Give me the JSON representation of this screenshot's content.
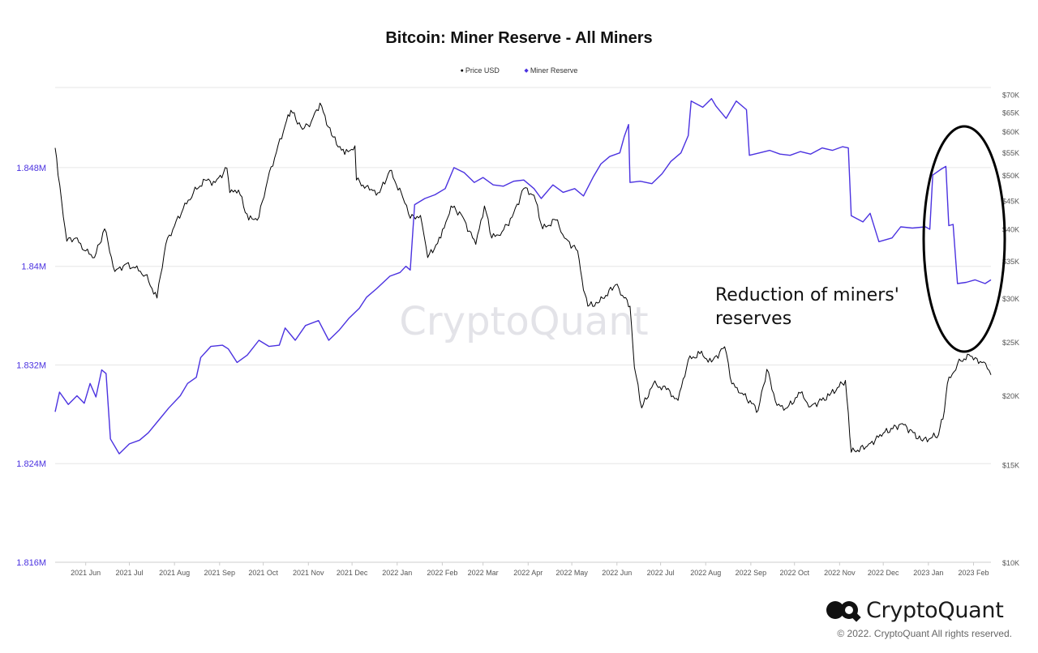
{
  "chart_data": {
    "type": "line",
    "title": "Bitcoin: Miner Reserve - All Miners",
    "legend": [
      "Price USD",
      "Miner Reserve"
    ],
    "legend_placement": "top-center",
    "grid": true,
    "x_ticks": [
      "2021 Jun",
      "2021 Jul",
      "2021 Aug",
      "2021 Sep",
      "2021 Oct",
      "2021 Nov",
      "2021 Dec",
      "2022 Jan",
      "2022 Feb",
      "2022 Mar",
      "2022 Apr",
      "2022 May",
      "2022 Jun",
      "2022 Jul",
      "2022 Aug",
      "2022 Sep",
      "2022 Oct",
      "2022 Nov",
      "2022 Dec",
      "2023 Jan",
      "2023 Feb"
    ],
    "x_range": [
      "2021-05-11",
      "2023-02-13"
    ],
    "y_left": {
      "ticks": [
        "1.848M",
        "1.84M",
        "1.832M",
        "1.824M",
        "1.816M"
      ],
      "tick_values": [
        1848000,
        1840000,
        1832000,
        1824000,
        1816000
      ],
      "range": [
        1816000,
        1854500
      ]
    },
    "y_right": {
      "scale": "log",
      "ticks": [
        "$70K",
        "$65K",
        "$60K",
        "$55K",
        "$50K",
        "$45K",
        "$40K",
        "$35K",
        "$30K",
        "$25K",
        "$20K",
        "$15K",
        "$10K"
      ],
      "tick_values": [
        70000,
        65000,
        60000,
        55000,
        50000,
        45000,
        40000,
        35000,
        30000,
        25000,
        20000,
        15000,
        10000
      ],
      "range": [
        10000,
        72000
      ]
    },
    "series": [
      {
        "name": "Price USD",
        "color": "#000000",
        "axis": "right",
        "points": [
          [
            "2021-05-11",
            56000
          ],
          [
            "2021-05-13",
            50000
          ],
          [
            "2021-05-19",
            38000
          ],
          [
            "2021-05-25",
            38500
          ],
          [
            "2021-06-01",
            36500
          ],
          [
            "2021-06-07",
            35500
          ],
          [
            "2021-06-14",
            40000
          ],
          [
            "2021-06-21",
            33500
          ],
          [
            "2021-06-28",
            34500
          ],
          [
            "2021-07-05",
            34000
          ],
          [
            "2021-07-12",
            33000
          ],
          [
            "2021-07-20",
            30000
          ],
          [
            "2021-07-26",
            37500
          ],
          [
            "2021-08-01",
            40500
          ],
          [
            "2021-08-07",
            43500
          ],
          [
            "2021-08-14",
            46500
          ],
          [
            "2021-08-22",
            49000
          ],
          [
            "2021-08-29",
            48500
          ],
          [
            "2021-09-06",
            51500
          ],
          [
            "2021-09-08",
            46500
          ],
          [
            "2021-09-14",
            47000
          ],
          [
            "2021-09-21",
            41500
          ],
          [
            "2021-09-28",
            42000
          ],
          [
            "2021-10-04",
            49000
          ],
          [
            "2021-10-10",
            55000
          ],
          [
            "2021-10-16",
            61500
          ],
          [
            "2021-10-20",
            65500
          ],
          [
            "2021-10-28",
            60500
          ],
          [
            "2021-11-03",
            62500
          ],
          [
            "2021-11-09",
            67500
          ],
          [
            "2021-11-17",
            59000
          ],
          [
            "2021-11-26",
            54500
          ],
          [
            "2021-12-03",
            56500
          ],
          [
            "2021-12-04",
            49000
          ],
          [
            "2021-12-13",
            47000
          ],
          [
            "2021-12-20",
            46500
          ],
          [
            "2021-12-27",
            51000
          ],
          [
            "2022-01-05",
            45500
          ],
          [
            "2022-01-10",
            41800
          ],
          [
            "2022-01-17",
            42300
          ],
          [
            "2022-01-22",
            35500
          ],
          [
            "2022-01-31",
            38500
          ],
          [
            "2022-02-07",
            44000
          ],
          [
            "2022-02-14",
            42500
          ],
          [
            "2022-02-24",
            37500
          ],
          [
            "2022-03-02",
            44000
          ],
          [
            "2022-03-07",
            38500
          ],
          [
            "2022-03-14",
            39500
          ],
          [
            "2022-03-21",
            42000
          ],
          [
            "2022-03-29",
            47300
          ],
          [
            "2022-04-05",
            46000
          ],
          [
            "2022-04-11",
            40000
          ],
          [
            "2022-04-20",
            41500
          ],
          [
            "2022-04-26",
            38500
          ],
          [
            "2022-05-05",
            36500
          ],
          [
            "2022-05-09",
            31000
          ],
          [
            "2022-05-12",
            29000
          ],
          [
            "2022-05-20",
            29500
          ],
          [
            "2022-05-31",
            31700
          ],
          [
            "2022-06-06",
            30000
          ],
          [
            "2022-06-10",
            29000
          ],
          [
            "2022-06-13",
            22500
          ],
          [
            "2022-06-18",
            19000
          ],
          [
            "2022-06-26",
            21000
          ],
          [
            "2022-07-05",
            20500
          ],
          [
            "2022-07-13",
            19600
          ],
          [
            "2022-07-20",
            23200
          ],
          [
            "2022-07-28",
            23800
          ],
          [
            "2022-08-05",
            23000
          ],
          [
            "2022-08-14",
            24500
          ],
          [
            "2022-08-19",
            21000
          ],
          [
            "2022-08-26",
            20200
          ],
          [
            "2022-09-06",
            18800
          ],
          [
            "2022-09-12",
            22300
          ],
          [
            "2022-09-19",
            19200
          ],
          [
            "2022-09-26",
            19000
          ],
          [
            "2022-10-05",
            20200
          ],
          [
            "2022-10-12",
            19100
          ],
          [
            "2022-10-25",
            20000
          ],
          [
            "2022-11-05",
            21300
          ],
          [
            "2022-11-09",
            15800
          ],
          [
            "2022-11-20",
            16200
          ],
          [
            "2022-12-01",
            17100
          ],
          [
            "2022-12-14",
            17800
          ],
          [
            "2022-12-28",
            16550
          ],
          [
            "2023-01-08",
            17000
          ],
          [
            "2023-01-12",
            18800
          ],
          [
            "2023-01-14",
            21000
          ],
          [
            "2023-01-21",
            22800
          ],
          [
            "2023-01-29",
            23700
          ],
          [
            "2023-02-01",
            23200
          ],
          [
            "2023-02-08",
            23000
          ],
          [
            "2023-02-13",
            21800
          ]
        ]
      },
      {
        "name": "Miner Reserve",
        "color": "#4b32e0",
        "axis": "left",
        "points": [
          [
            "2021-05-11",
            1828200
          ],
          [
            "2021-05-14",
            1829800
          ],
          [
            "2021-05-20",
            1828800
          ],
          [
            "2021-05-26",
            1829500
          ],
          [
            "2021-05-31",
            1828900
          ],
          [
            "2021-06-04",
            1830500
          ],
          [
            "2021-06-08",
            1829400
          ],
          [
            "2021-06-12",
            1831600
          ],
          [
            "2021-06-15",
            1831300
          ],
          [
            "2021-06-18",
            1826000
          ],
          [
            "2021-06-24",
            1824800
          ],
          [
            "2021-07-01",
            1825600
          ],
          [
            "2021-07-08",
            1825900
          ],
          [
            "2021-07-14",
            1826500
          ],
          [
            "2021-07-21",
            1827500
          ],
          [
            "2021-07-28",
            1828500
          ],
          [
            "2021-08-05",
            1829500
          ],
          [
            "2021-08-10",
            1830500
          ],
          [
            "2021-08-16",
            1831000
          ],
          [
            "2021-08-19",
            1832600
          ],
          [
            "2021-08-26",
            1833500
          ],
          [
            "2021-09-03",
            1833600
          ],
          [
            "2021-09-07",
            1833300
          ],
          [
            "2021-09-13",
            1832200
          ],
          [
            "2021-09-20",
            1832800
          ],
          [
            "2021-09-28",
            1834000
          ],
          [
            "2021-10-05",
            1833500
          ],
          [
            "2021-10-12",
            1833600
          ],
          [
            "2021-10-16",
            1835000
          ],
          [
            "2021-10-23",
            1834000
          ],
          [
            "2021-10-30",
            1835200
          ],
          [
            "2021-11-08",
            1835600
          ],
          [
            "2021-11-15",
            1834000
          ],
          [
            "2021-11-22",
            1834800
          ],
          [
            "2021-11-29",
            1835800
          ],
          [
            "2021-12-06",
            1836600
          ],
          [
            "2021-12-11",
            1837500
          ],
          [
            "2021-12-18",
            1838200
          ],
          [
            "2021-12-27",
            1839200
          ],
          [
            "2022-01-03",
            1839500
          ],
          [
            "2022-01-07",
            1840000
          ],
          [
            "2022-01-10",
            1839700
          ],
          [
            "2022-01-13",
            1845000
          ],
          [
            "2022-01-20",
            1845500
          ],
          [
            "2022-01-27",
            1845800
          ],
          [
            "2022-02-03",
            1846300
          ],
          [
            "2022-02-09",
            1848000
          ],
          [
            "2022-02-16",
            1847600
          ],
          [
            "2022-02-23",
            1846800
          ],
          [
            "2022-03-01",
            1847200
          ],
          [
            "2022-03-08",
            1846600
          ],
          [
            "2022-03-15",
            1846500
          ],
          [
            "2022-03-22",
            1846900
          ],
          [
            "2022-03-29",
            1847000
          ],
          [
            "2022-04-05",
            1846300
          ],
          [
            "2022-04-10",
            1845500
          ],
          [
            "2022-04-18",
            1846600
          ],
          [
            "2022-04-25",
            1846000
          ],
          [
            "2022-05-03",
            1846300
          ],
          [
            "2022-05-09",
            1845700
          ],
          [
            "2022-05-16",
            1847300
          ],
          [
            "2022-05-21",
            1848300
          ],
          [
            "2022-05-27",
            1848900
          ],
          [
            "2022-06-03",
            1849200
          ],
          [
            "2022-06-06",
            1850500
          ],
          [
            "2022-06-09",
            1851500
          ],
          [
            "2022-06-10",
            1846800
          ],
          [
            "2022-06-17",
            1846900
          ],
          [
            "2022-06-25",
            1846700
          ],
          [
            "2022-07-02",
            1847500
          ],
          [
            "2022-07-08",
            1848500
          ],
          [
            "2022-07-15",
            1849200
          ],
          [
            "2022-07-20",
            1850600
          ],
          [
            "2022-07-22",
            1853400
          ],
          [
            "2022-07-30",
            1852900
          ],
          [
            "2022-08-05",
            1853600
          ],
          [
            "2022-08-08",
            1853000
          ],
          [
            "2022-08-15",
            1852000
          ],
          [
            "2022-08-22",
            1853400
          ],
          [
            "2022-08-29",
            1852700
          ],
          [
            "2022-08-31",
            1849000
          ],
          [
            "2022-09-07",
            1849200
          ],
          [
            "2022-09-14",
            1849400
          ],
          [
            "2022-09-21",
            1849100
          ],
          [
            "2022-09-28",
            1849000
          ],
          [
            "2022-10-05",
            1849300
          ],
          [
            "2022-10-12",
            1849100
          ],
          [
            "2022-10-20",
            1849600
          ],
          [
            "2022-10-27",
            1849400
          ],
          [
            "2022-11-03",
            1849700
          ],
          [
            "2022-11-07",
            1849600
          ],
          [
            "2022-11-09",
            1844100
          ],
          [
            "2022-11-17",
            1843600
          ],
          [
            "2022-11-22",
            1844300
          ],
          [
            "2022-11-28",
            1842000
          ],
          [
            "2022-12-07",
            1842300
          ],
          [
            "2022-12-13",
            1843200
          ],
          [
            "2022-12-21",
            1843100
          ],
          [
            "2022-12-30",
            1843200
          ],
          [
            "2023-01-02",
            1843000
          ],
          [
            "2023-01-04",
            1847400
          ],
          [
            "2023-01-10",
            1847900
          ],
          [
            "2023-01-13",
            1848100
          ],
          [
            "2023-01-15",
            1843300
          ],
          [
            "2023-01-18",
            1843400
          ],
          [
            "2023-01-21",
            1838600
          ],
          [
            "2023-01-27",
            1838700
          ],
          [
            "2023-02-02",
            1838900
          ],
          [
            "2023-02-09",
            1838600
          ],
          [
            "2023-02-13",
            1838900
          ]
        ]
      }
    ],
    "annotations": [
      "Reduction of miners' reserves"
    ]
  },
  "watermark": "CryptoQuant",
  "footer": {
    "brand": "CryptoQuant",
    "copyright": "© 2022. CryptoQuant All rights reserved."
  }
}
